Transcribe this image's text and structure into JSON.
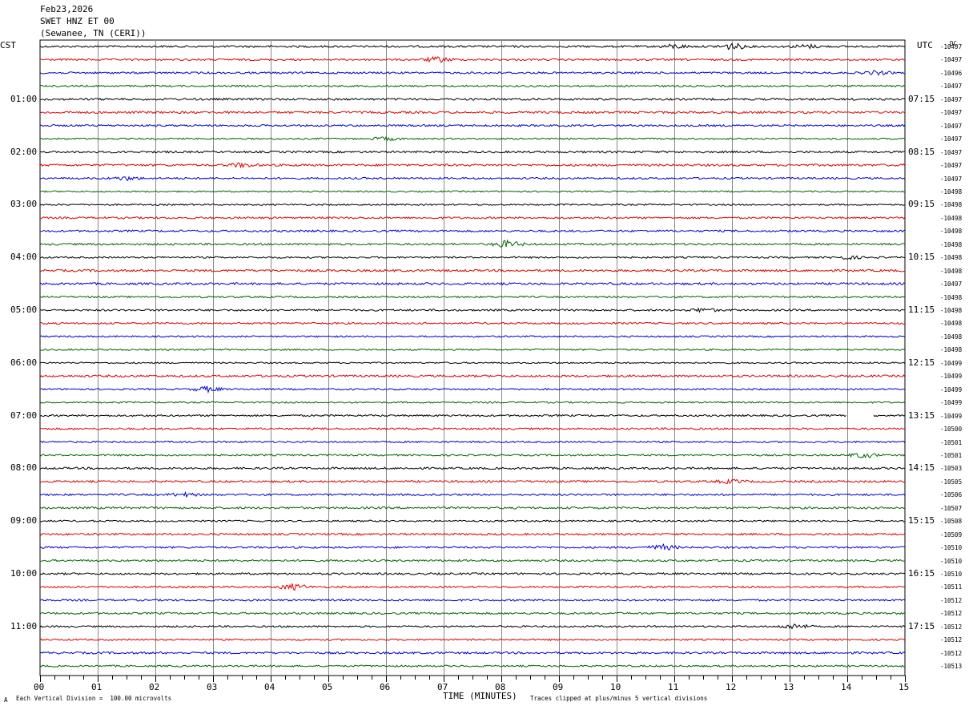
{
  "header": {
    "date": "Feb23,2026",
    "station": "SWET HNZ ET 00",
    "location": "(Sewanee, TN (CERI))"
  },
  "left_tz": "CST",
  "right_tz": "UTC",
  "dc_label": "DC",
  "left_times": [
    "01:00",
    "02:00",
    "03:00",
    "04:00",
    "05:00",
    "06:00",
    "07:00",
    "08:00",
    "09:00",
    "10:00",
    "11:00"
  ],
  "right_times": [
    "07:15",
    "08:15",
    "09:15",
    "10:15",
    "11:15",
    "12:15",
    "13:15",
    "14:15",
    "15:15",
    "16:15",
    "17:15"
  ],
  "dc_values": [
    "-10497",
    "-10497",
    "-10496",
    "-10497",
    "-10497",
    "-10497",
    "-10497",
    "-10497",
    "-10497",
    "-10497",
    "-10497",
    "-10498",
    "-10498",
    "-10498",
    "-10498",
    "-10498",
    "-10498",
    "-10498",
    "-10497",
    "-10498",
    "-10498",
    "-10498",
    "-10498",
    "-10498",
    "-10499",
    "-10499",
    "-10499",
    "-10499",
    "-10499",
    "-10500",
    "-10501",
    "-10501",
    "-10503",
    "-10505",
    "-10506",
    "-10507",
    "-10508",
    "-10509",
    "-10510",
    "-10510",
    "-10510",
    "-10511",
    "-10512",
    "-10512",
    "-10512",
    "-10512",
    "-10512",
    "-10513"
  ],
  "footer": {
    "scale_note": "Each Vertical Division =  100.00 microvolts",
    "xlabel": "TIME (MINUTES)",
    "clip_note": "Traces clipped at plus/minus 5 vertical divisions",
    "corner_mark": "A"
  },
  "chart_data": {
    "type": "line",
    "title": "SWET HNZ ET 00",
    "xlabel": "TIME (MINUTES)",
    "xlim": [
      0,
      15
    ],
    "x_ticks": [
      "00",
      "01",
      "02",
      "03",
      "04",
      "05",
      "06",
      "07",
      "08",
      "09",
      "10",
      "11",
      "12",
      "13",
      "14",
      "15"
    ],
    "trace_count": 48,
    "trace_minutes": 15,
    "trace_colors": [
      "#000000",
      "#dd0000",
      "#0000cc",
      "#006600"
    ],
    "gap": {
      "trace": 28,
      "x_start": 14.0,
      "x_end": 14.45
    },
    "bursts": [
      {
        "trace": 0,
        "x": 11.0,
        "amp": 2.2
      },
      {
        "trace": 0,
        "x": 12.0,
        "amp": 3.5
      },
      {
        "trace": 0,
        "x": 13.3,
        "amp": 2.0
      },
      {
        "trace": 1,
        "x": 6.9,
        "amp": 3.0
      },
      {
        "trace": 2,
        "x": 14.5,
        "amp": 2.0
      },
      {
        "trace": 7,
        "x": 6.0,
        "amp": 2.0
      },
      {
        "trace": 9,
        "x": 3.5,
        "amp": 2.2
      },
      {
        "trace": 10,
        "x": 1.5,
        "amp": 2.0
      },
      {
        "trace": 15,
        "x": 8.1,
        "amp": 4.0
      },
      {
        "trace": 16,
        "x": 14.0,
        "amp": 1.8
      },
      {
        "trace": 20,
        "x": 11.5,
        "amp": 2.0
      },
      {
        "trace": 26,
        "x": 2.9,
        "amp": 3.0
      },
      {
        "trace": 31,
        "x": 14.3,
        "amp": 3.0
      },
      {
        "trace": 33,
        "x": 12.0,
        "amp": 2.0
      },
      {
        "trace": 34,
        "x": 2.5,
        "amp": 2.0
      },
      {
        "trace": 41,
        "x": 4.4,
        "amp": 3.5
      },
      {
        "trace": 38,
        "x": 10.8,
        "amp": 3.0
      },
      {
        "trace": 44,
        "x": 13.1,
        "amp": 3.0
      }
    ]
  }
}
